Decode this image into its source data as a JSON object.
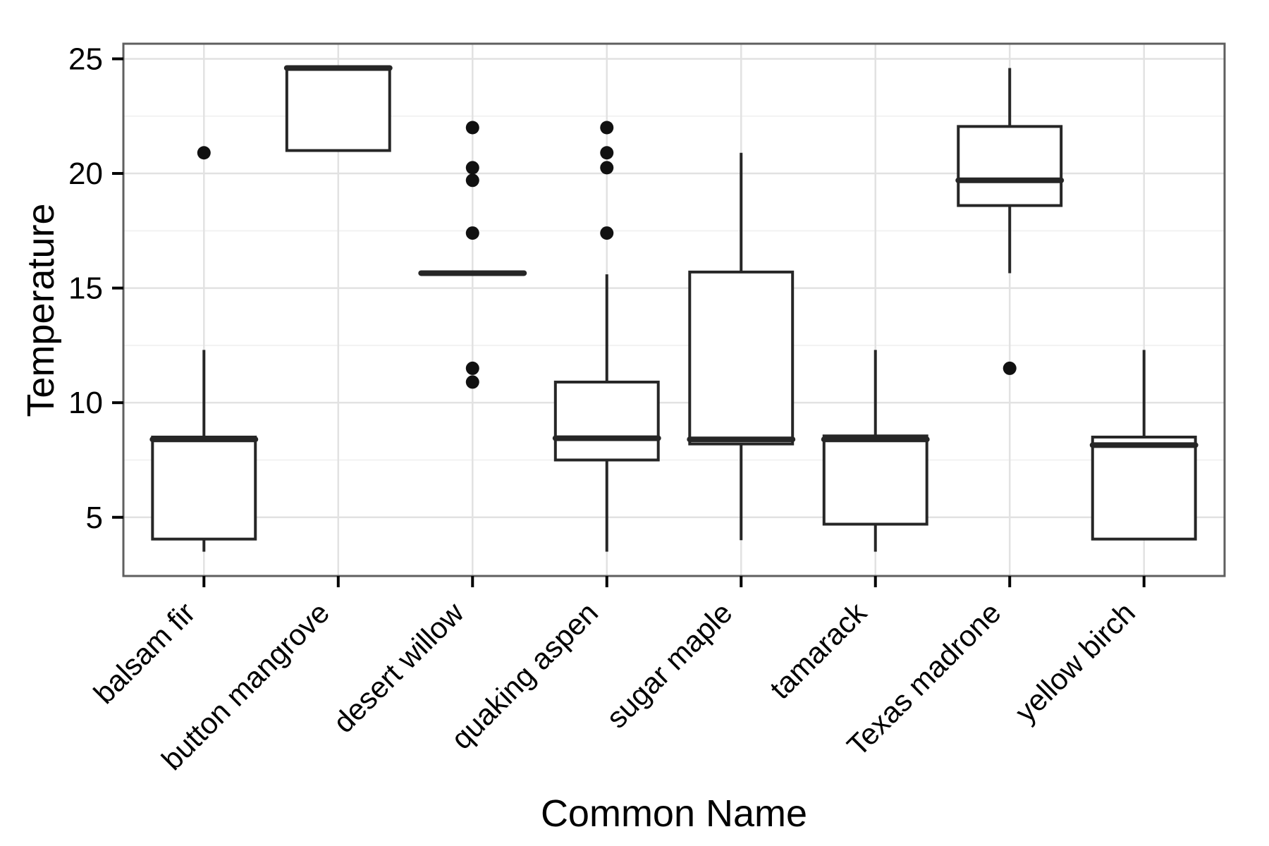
{
  "chart_data": {
    "type": "box",
    "title": "",
    "xlabel": "Common Name",
    "ylabel": "Temperature",
    "x_axis": {
      "tick_label_angle_deg": -45,
      "categories": [
        "balsam fir",
        "button mangrove",
        "desert willow",
        "quaking aspen",
        "sugar maple",
        "tamarack",
        "Texas madrone",
        "yellow birch"
      ]
    },
    "y_axis": {
      "ticks": [
        5,
        10,
        15,
        20,
        25
      ],
      "tick_labels": [
        "5",
        "10",
        "15",
        "20",
        "25"
      ],
      "minor_gridlines": [
        7.5,
        12.5,
        17.5,
        22.5
      ],
      "ylim": [
        2.44,
        25.66
      ]
    },
    "grid": "on",
    "legend": "none",
    "series": [
      {
        "name": "balsam fir",
        "whisker_low": 3.5,
        "q1": 4.05,
        "median": 8.4,
        "q3": 8.5,
        "whisker_high": 12.3,
        "outliers": [
          20.9
        ]
      },
      {
        "name": "button mangrove",
        "whisker_low": 21.0,
        "q1": 21.0,
        "median": 24.6,
        "q3": 24.6,
        "whisker_high": 24.6,
        "outliers": []
      },
      {
        "name": "desert willow",
        "whisker_low": 15.65,
        "q1": 15.65,
        "median": 15.65,
        "q3": 15.65,
        "whisker_high": 15.65,
        "outliers": [
          22.0,
          20.25,
          19.7,
          17.4,
          11.5,
          10.9
        ]
      },
      {
        "name": "quaking aspen",
        "whisker_low": 3.5,
        "q1": 7.5,
        "median": 8.45,
        "q3": 10.9,
        "whisker_high": 15.6,
        "outliers": [
          22.0,
          20.9,
          20.25,
          17.4
        ]
      },
      {
        "name": "sugar maple",
        "whisker_low": 4.0,
        "q1": 8.2,
        "median": 8.4,
        "q3": 15.7,
        "whisker_high": 20.9,
        "outliers": []
      },
      {
        "name": "tamarack",
        "whisker_low": 3.5,
        "q1": 4.7,
        "median": 8.4,
        "q3": 8.55,
        "whisker_high": 12.3,
        "outliers": []
      },
      {
        "name": "Texas madrone",
        "whisker_low": 15.65,
        "q1": 18.6,
        "median": 19.7,
        "q3": 22.05,
        "whisker_high": 24.6,
        "outliers": [
          11.5
        ]
      },
      {
        "name": "yellow birch",
        "whisker_low": 4.05,
        "q1": 4.05,
        "median": 8.15,
        "q3": 8.5,
        "whisker_high": 12.3,
        "outliers": []
      }
    ],
    "colors": {
      "background": "#ffffff",
      "panel_fill": "#ffffff",
      "panel_border": "#5f5f5f",
      "gridline_major": "#e2e2e2",
      "gridline_minor": "#f2f2f2",
      "box_stroke": "#262626",
      "box_fill": "#ffffff",
      "outlier_fill": "#111111",
      "tick_mark": "#000000",
      "text": "#000000"
    }
  }
}
